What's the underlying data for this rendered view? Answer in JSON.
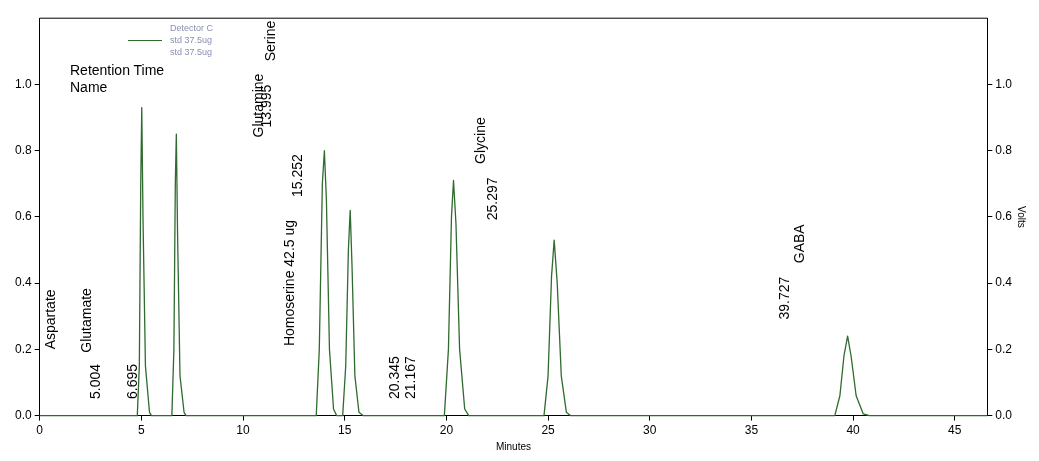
{
  "chart_data": {
    "type": "line",
    "xlabel": "Minutes",
    "y2label": "Volts",
    "legend_title": "Detector C",
    "legend": "top left",
    "grid": false,
    "marker": "none",
    "line_style": "solid",
    "xlim": [
      0,
      46.6
    ],
    "xticks": [
      0,
      5,
      10,
      15,
      20,
      25,
      30,
      35,
      40,
      45
    ],
    "ylim": [
      0,
      1.2
    ],
    "yticks": [
      {
        "value": 0,
        "label": "0.0"
      },
      0.2,
      0.4,
      0.6,
      0.8,
      {
        "value": 1,
        "label": "1.0"
      }
    ],
    "y2lim": [
      0,
      1.2
    ],
    "y2ticks": [
      {
        "value": 0,
        "label": "0.0"
      },
      0.2,
      0.4,
      0.6,
      0.8,
      {
        "value": 1,
        "label": "1.0"
      }
    ],
    "series": [
      {
        "name": "std 37.5ug",
        "color": "#2f6b2f",
        "x": [
          0,
          4.8,
          4.9,
          4.97,
          5.02,
          5.08,
          5.2,
          5.4,
          5.5,
          6.5,
          6.6,
          6.67,
          6.72,
          6.78,
          6.9,
          7.1,
          7.2,
          13.6,
          13.75,
          13.9,
          14.0,
          14.1,
          14.25,
          14.45,
          14.6,
          14.9,
          15.05,
          15.18,
          15.27,
          15.36,
          15.5,
          15.7,
          15.9,
          19.9,
          20.1,
          20.25,
          20.35,
          20.47,
          20.65,
          20.9,
          21.1,
          24.8,
          25.0,
          25.17,
          25.3,
          25.45,
          25.65,
          25.9,
          26.1,
          39.1,
          39.35,
          39.55,
          39.73,
          39.9,
          40.15,
          40.5,
          40.8,
          46.6
        ],
        "values": [
          0,
          0,
          0.15,
          0.7,
          0.93,
          0.6,
          0.15,
          0.01,
          0,
          0,
          0.2,
          0.7,
          0.85,
          0.55,
          0.12,
          0.01,
          0,
          0,
          0.2,
          0.7,
          0.8,
          0.65,
          0.2,
          0.02,
          0,
          0,
          0.15,
          0.5,
          0.62,
          0.45,
          0.12,
          0.01,
          0,
          0,
          0.2,
          0.6,
          0.71,
          0.58,
          0.2,
          0.02,
          0,
          0,
          0.12,
          0.42,
          0.53,
          0.4,
          0.12,
          0.01,
          0,
          0,
          0.06,
          0.18,
          0.24,
          0.18,
          0.06,
          0.005,
          0,
          0
        ]
      }
    ],
    "annotations": [
      "std 37.5ug",
      "Retention Time",
      "Name",
      "Aspartate",
      "Glutamate",
      "5.004",
      "6.695",
      "Glutamine",
      "13.995",
      "Serine",
      "Homoserine 42.5 ug",
      "15.252",
      "20.345",
      "21.167",
      "Glycine",
      "25.297",
      "GABA",
      "39.727"
    ]
  }
}
